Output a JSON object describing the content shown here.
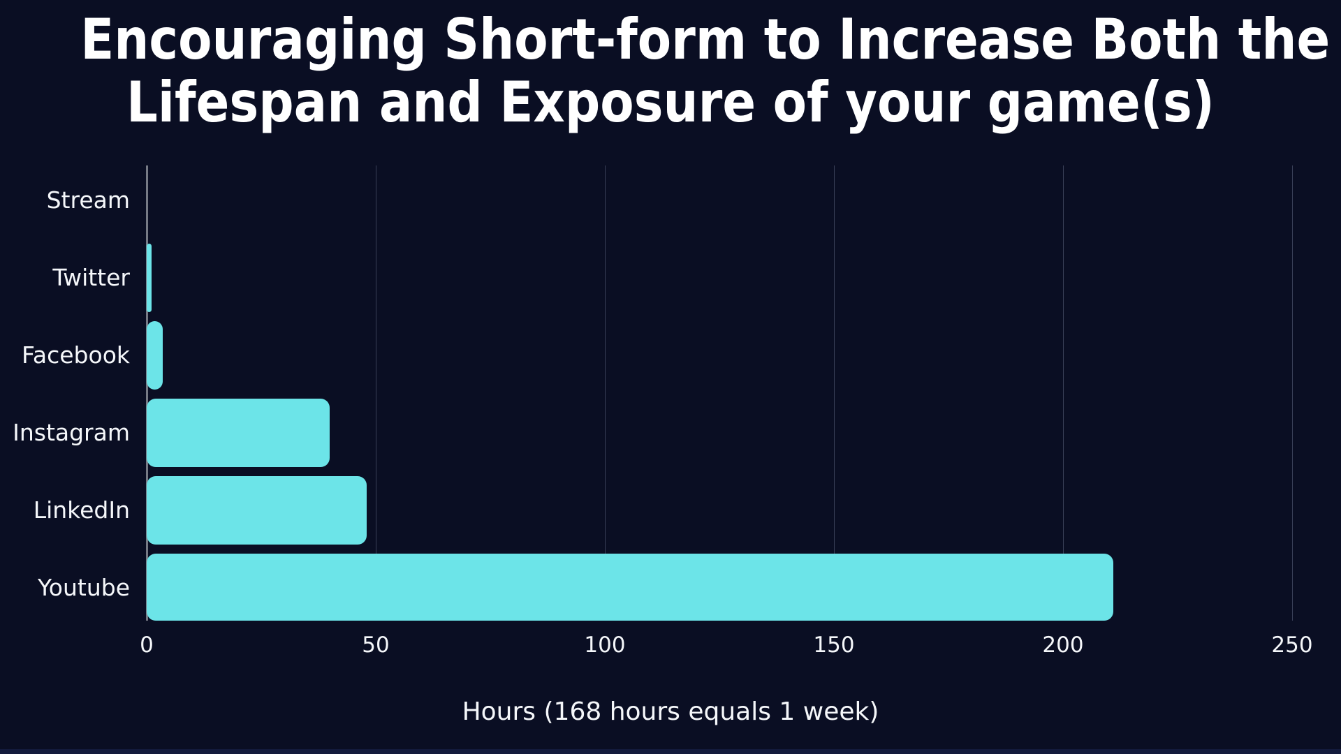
{
  "title": {
    "line1": "Encouraging Short-form to Increase Both the",
    "line2": "Lifespan and Exposure of your game(s)"
  },
  "colors": {
    "background": "#0a0e23",
    "bar": "#6ce4e8",
    "title_text": "#ffffff",
    "label_text": "#f5f7fa",
    "axis_line": "#767a85",
    "gridline": "#3a4058",
    "bottom_strip": "#131a3c"
  },
  "chart_data": {
    "type": "bar",
    "orientation": "horizontal",
    "title": "Encouraging Short-form to Increase Both the Lifespan and Exposure of your game(s)",
    "categories": [
      "Stream",
      "Twitter",
      "Facebook",
      "Instagram",
      "LinkedIn",
      "Youtube"
    ],
    "values": [
      0,
      1,
      3.5,
      40,
      48,
      211
    ],
    "xlabel": "Hours (168 hours equals 1 week)",
    "ylabel": "",
    "xlim": [
      0,
      250
    ],
    "ticks": [
      0,
      50,
      100,
      150,
      200,
      250
    ],
    "grid": "vertical-gridlines-on",
    "legend": "none"
  }
}
